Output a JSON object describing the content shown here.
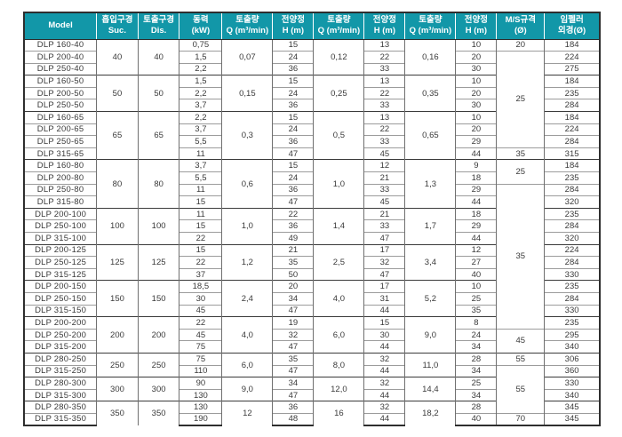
{
  "colors": {
    "header_bg": "#1297a8",
    "header_text": "#ffffff",
    "border_dark": "#2e2e2e",
    "border_column": "#6f6f6f",
    "border_row": "#9c9c9c",
    "body_text": "#3a3a3a"
  },
  "header": {
    "columns": [
      {
        "line1": "Model",
        "line2": ""
      },
      {
        "line1": "흡입구경",
        "line2": "Suc."
      },
      {
        "line1": "토출구경",
        "line2": "Dis."
      },
      {
        "line1": "동력",
        "line2": "(kW)"
      },
      {
        "line1": "토출량",
        "line2": "Q (m³/min)"
      },
      {
        "line1": "전양정",
        "line2": "H (m)"
      },
      {
        "line1": "토출량",
        "line2": "Q (m³/min)"
      },
      {
        "line1": "전양정",
        "line2": "H (m)"
      },
      {
        "line1": "토출량",
        "line2": "Q (m³/min)"
      },
      {
        "line1": "전양정",
        "line2": "H (m)"
      },
      {
        "line1": "M/S규격",
        "line2": "(Ø)"
      },
      {
        "line1": "임펠러",
        "line2": "외경(Ø)"
      }
    ]
  },
  "groups": [
    {
      "suc": "40",
      "dis": "40",
      "q1": "0,07",
      "q2": "0,12",
      "q3": "0,16",
      "rows": [
        {
          "model": "DLP 160-40",
          "kw": "0,75",
          "h1": "15",
          "h2": "13",
          "h3": "10",
          "impeller": "184"
        },
        {
          "model": "DLP 200-40",
          "kw": "1,5",
          "h1": "24",
          "h2": "22",
          "h3": "20",
          "impeller": "224"
        },
        {
          "model": "DLP 250-40",
          "kw": "2,2",
          "h1": "36",
          "h2": "33",
          "h3": "30",
          "impeller": "275"
        }
      ]
    },
    {
      "suc": "50",
      "dis": "50",
      "q1": "0,15",
      "q2": "0,25",
      "q3": "0,35",
      "rows": [
        {
          "model": "DLP 160-50",
          "kw": "1,5",
          "h1": "15",
          "h2": "13",
          "h3": "10",
          "impeller": "184"
        },
        {
          "model": "DLP 200-50",
          "kw": "2,2",
          "h1": "24",
          "h2": "22",
          "h3": "20",
          "impeller": "235"
        },
        {
          "model": "DLP 250-50",
          "kw": "3,7",
          "h1": "36",
          "h2": "33",
          "h3": "30",
          "impeller": "284"
        }
      ]
    },
    {
      "suc": "65",
      "dis": "65",
      "q1": "0,3",
      "q2": "0,5",
      "q3": "0,65",
      "rows": [
        {
          "model": "DLP 160-65",
          "kw": "2,2",
          "h1": "15",
          "h2": "13",
          "h3": "10",
          "impeller": "184"
        },
        {
          "model": "DLP 200-65",
          "kw": "3,7",
          "h1": "24",
          "h2": "22",
          "h3": "20",
          "impeller": "224"
        },
        {
          "model": "DLP 250-65",
          "kw": "5,5",
          "h1": "36",
          "h2": "33",
          "h3": "29",
          "impeller": "284"
        },
        {
          "model": "DLP 315-65",
          "kw": "11",
          "h1": "47",
          "h2": "45",
          "h3": "44",
          "impeller": "315"
        }
      ]
    },
    {
      "suc": "80",
      "dis": "80",
      "q1": "0,6",
      "q2": "1,0",
      "q3": "1,3",
      "rows": [
        {
          "model": "DLP 160-80",
          "kw": "3,7",
          "h1": "15",
          "h2": "12",
          "h3": "9",
          "impeller": "184"
        },
        {
          "model": "DLP 200-80",
          "kw": "5,5",
          "h1": "24",
          "h2": "21",
          "h3": "18",
          "impeller": "235"
        },
        {
          "model": "DLP 250-80",
          "kw": "11",
          "h1": "36",
          "h2": "33",
          "h3": "29",
          "impeller": "284"
        },
        {
          "model": "DLP 315-80",
          "kw": "15",
          "h1": "47",
          "h2": "45",
          "h3": "44",
          "impeller": "320"
        }
      ]
    },
    {
      "suc": "100",
      "dis": "100",
      "q1": "1,0",
      "q2": "1,4",
      "q3": "1,7",
      "rows": [
        {
          "model": "DLP 200-100",
          "kw": "11",
          "h1": "22",
          "h2": "21",
          "h3": "18",
          "impeller": "235"
        },
        {
          "model": "DLP 250-100",
          "kw": "15",
          "h1": "36",
          "h2": "33",
          "h3": "29",
          "impeller": "284"
        },
        {
          "model": "DLP 315-100",
          "kw": "22",
          "h1": "49",
          "h2": "47",
          "h3": "44",
          "impeller": "320"
        }
      ]
    },
    {
      "suc": "125",
      "dis": "125",
      "q1": "1,2",
      "q2": "2,5",
      "q3": "3,4",
      "rows": [
        {
          "model": "DLP 200-125",
          "kw": "15",
          "h1": "21",
          "h2": "17",
          "h3": "12",
          "impeller": "224"
        },
        {
          "model": "DLP 250-125",
          "kw": "22",
          "h1": "35",
          "h2": "32",
          "h3": "27",
          "impeller": "284"
        },
        {
          "model": "DLP 315-125",
          "kw": "37",
          "h1": "50",
          "h2": "47",
          "h3": "40",
          "impeller": "330"
        }
      ]
    },
    {
      "suc": "150",
      "dis": "150",
      "q1": "2,4",
      "q2": "4,0",
      "q3": "5,2",
      "rows": [
        {
          "model": "DLP 200-150",
          "kw": "18,5",
          "h1": "20",
          "h2": "17",
          "h3": "10",
          "impeller": "235"
        },
        {
          "model": "DLP 250-150",
          "kw": "30",
          "h1": "34",
          "h2": "31",
          "h3": "25",
          "impeller": "284"
        },
        {
          "model": "DLP 315-150",
          "kw": "45",
          "h1": "47",
          "h2": "44",
          "h3": "35",
          "impeller": "330"
        }
      ]
    },
    {
      "suc": "200",
      "dis": "200",
      "q1": "4,0",
      "q2": "6,0",
      "q3": "9,0",
      "rows": [
        {
          "model": "DLP 200-200",
          "kw": "22",
          "h1": "19",
          "h2": "15",
          "h3": "8",
          "impeller": "235"
        },
        {
          "model": "DLP 250-200",
          "kw": "45",
          "h1": "32",
          "h2": "30",
          "h3": "24",
          "impeller": "295"
        },
        {
          "model": "DLP 315-200",
          "kw": "75",
          "h1": "47",
          "h2": "44",
          "h3": "34",
          "impeller": "340"
        }
      ]
    },
    {
      "suc": "250",
      "dis": "250",
      "q1": "6,0",
      "q2": "8,0",
      "q3": "11,0",
      "rows": [
        {
          "model": "DLP 280-250",
          "kw": "75",
          "h1": "35",
          "h2": "32",
          "h3": "28",
          "impeller": "306"
        },
        {
          "model": "DLP 315-250",
          "kw": "110",
          "h1": "47",
          "h2": "44",
          "h3": "34",
          "impeller": "360"
        }
      ]
    },
    {
      "suc": "300",
      "dis": "300",
      "q1": "9,0",
      "q2": "12,0",
      "q3": "14,4",
      "rows": [
        {
          "model": "DLP 280-300",
          "kw": "90",
          "h1": "34",
          "h2": "32",
          "h3": "25",
          "impeller": "330"
        },
        {
          "model": "DLP 315-300",
          "kw": "130",
          "h1": "47",
          "h2": "44",
          "h3": "34",
          "impeller": "340"
        }
      ]
    },
    {
      "suc": "350",
      "dis": "350",
      "q1": "12",
      "q2": "16",
      "q3": "18,2",
      "rows": [
        {
          "model": "DLP 280-350",
          "kw": "130",
          "h1": "36",
          "h2": "32",
          "h3": "28",
          "impeller": "345"
        },
        {
          "model": "DLP 315-350",
          "kw": "190",
          "h1": "48",
          "h2": "44",
          "h3": "40",
          "impeller": "345"
        }
      ]
    }
  ],
  "ms_cells": [
    {
      "value": "20",
      "span": 1
    },
    {
      "value": "25",
      "span": 8
    },
    {
      "value": "35",
      "span": 1
    },
    {
      "value": "25",
      "span": 2
    },
    {
      "value": "35",
      "span": 12
    },
    {
      "value": "45",
      "span": 2
    },
    {
      "value": "55",
      "span": 1
    },
    {
      "value": "55",
      "span": 4
    },
    {
      "value": "70",
      "span": 1
    }
  ]
}
